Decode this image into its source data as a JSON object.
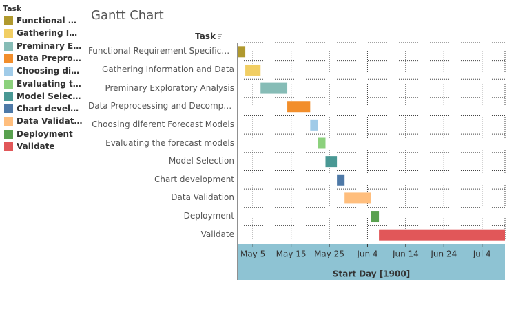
{
  "chart_data": {
    "type": "gantt",
    "title": "Gantt Chart",
    "legend_title": "Task",
    "y_title": "Task",
    "x_title": "Start Day [1900]",
    "categories": [
      "Functional Requirement Specification",
      "Gathering Information and Data",
      "Preminary Exploratory Analysis",
      "Data Preprocessing and Decomposition",
      "Choosing diferent Forecast Models",
      "Evaluating the forecast models",
      "Model Selection",
      "Chart development",
      "Data Validation",
      "Deployment",
      "Validate"
    ],
    "start": [
      "1900-05-01",
      "1900-05-03",
      "1900-05-07",
      "1900-05-14",
      "1900-05-20",
      "1900-05-22",
      "1900-05-24",
      "1900-05-27",
      "1900-05-29",
      "1900-06-05",
      "1900-06-07"
    ],
    "duration": [
      2,
      4,
      7,
      6,
      2,
      2,
      3,
      2,
      7,
      2,
      33
    ],
    "colors": [
      "#b0992e",
      "#f1ce63",
      "#86bcb6",
      "#f28e2b",
      "#a0cbe8",
      "#8cd17d",
      "#499894",
      "#4e79a7",
      "#ffbe7d",
      "#59a14f",
      "#e15759"
    ],
    "xlim": [
      "1900-05-01",
      "1900-07-10"
    ],
    "xticks": [
      {
        "value": "1900-05-05",
        "label": "May 5"
      },
      {
        "value": "1900-05-15",
        "label": "May 15"
      },
      {
        "value": "1900-05-25",
        "label": "May 25"
      },
      {
        "value": "1900-06-04",
        "label": "Jun 4"
      },
      {
        "value": "1900-06-14",
        "label": "Jun 14"
      },
      {
        "value": "1900-06-24",
        "label": "Jun 24"
      },
      {
        "value": "1900-07-04",
        "label": "Jul 4"
      }
    ],
    "grid": true
  }
}
